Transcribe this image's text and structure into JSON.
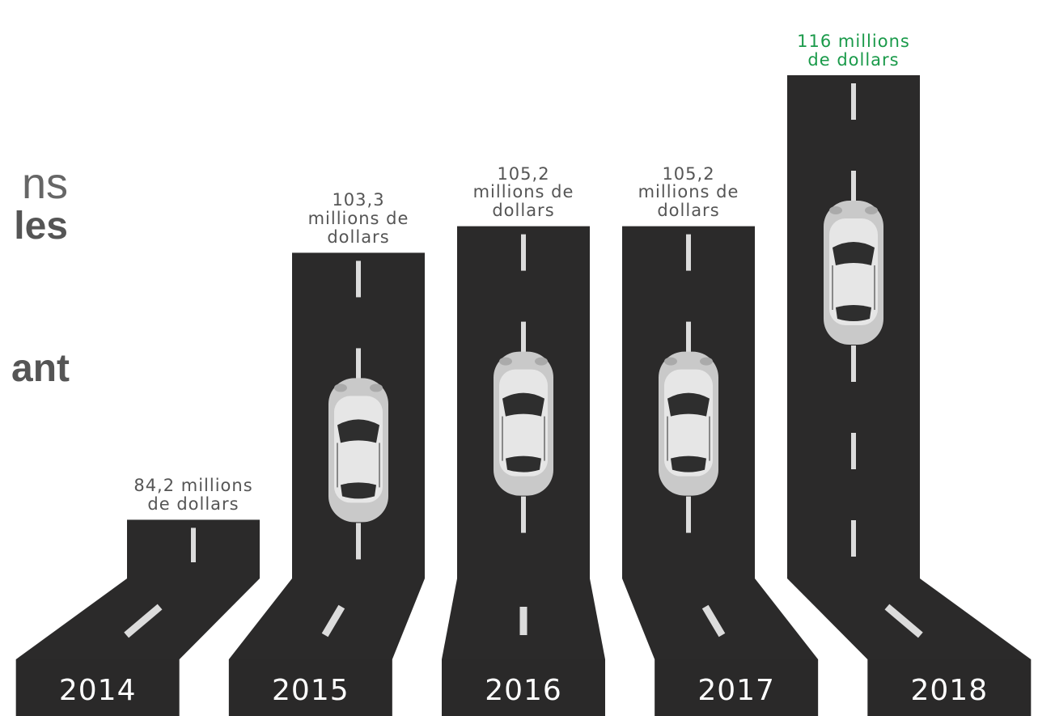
{
  "chart_data": {
    "type": "bar",
    "annotations": [
      "ns",
      "les",
      "ant"
    ],
    "categories": [
      "2014",
      "2015",
      "2016",
      "2017",
      "2018"
    ],
    "values": [
      84.2,
      103.3,
      105.2,
      105.2,
      116
    ],
    "value_labels": [
      "84,2 millions de dollars",
      "103,3 millions de dollars",
      "105,2 millions de dollars",
      "105,2 millions de dollars",
      "116 millions de dollars"
    ],
    "value_label_colors": [
      "#555555",
      "#555555",
      "#555555",
      "#555555",
      "#1a9a4a"
    ],
    "color": "#2b2a2a",
    "ylim": [
      80,
      116
    ]
  }
}
